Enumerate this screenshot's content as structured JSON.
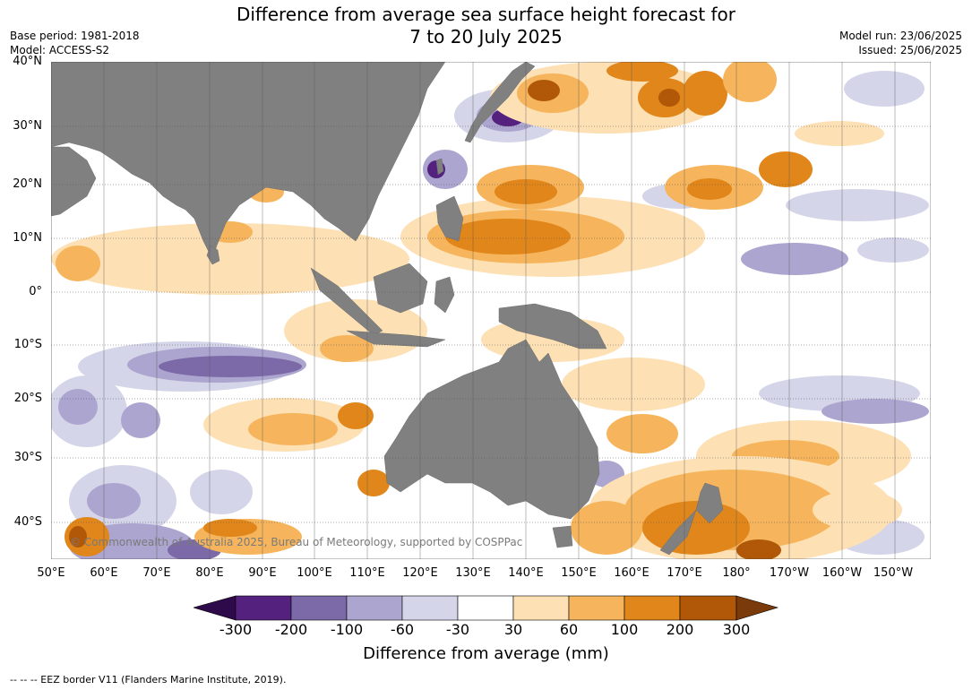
{
  "title_line1": "Difference from average sea surface height forecast for",
  "title_line2": "7 to 20 July 2025",
  "meta_left": [
    "Base period: 1981-2018",
    "Model: ACCESS-S2"
  ],
  "meta_right": [
    "Model run: 23/06/2025",
    "Issued: 25/06/2025"
  ],
  "lat_labels": [
    "40°N",
    "30°N",
    "20°N",
    "10°N",
    "0°",
    "10°S",
    "20°S",
    "30°S",
    "40°S"
  ],
  "lon_labels": [
    "50°E",
    "60°E",
    "70°E",
    "80°E",
    "90°E",
    "100°E",
    "110°E",
    "120°E",
    "130°E",
    "140°E",
    "150°E",
    "160°E",
    "170°E",
    "180°",
    "170°W",
    "160°W",
    "150°W"
  ],
  "colorbar": {
    "ticks": [
      "-300",
      "-200",
      "-100",
      "-60",
      "-30",
      "30",
      "60",
      "100",
      "200",
      "300"
    ],
    "colors": [
      "#2e0a4a",
      "#55217f",
      "#7c6aa8",
      "#ab a5cf",
      "#d4d5e8",
      "#ffffff",
      "#fde0b4",
      "#f6b55c",
      "#e0861a",
      "#b05808",
      "#7a3a0a"
    ],
    "label": "Difference from average (mm)"
  },
  "copyright": "© Commonwealth of Australia 2025, Bureau of Meteorology, supported by COSPPac",
  "footer": "--  --  -- EEZ border V11 (Flanders Marine Institute, 2019).",
  "colors": {
    "land": "#808080",
    "ocean": "#ffffff",
    "grid": "#555555"
  }
}
